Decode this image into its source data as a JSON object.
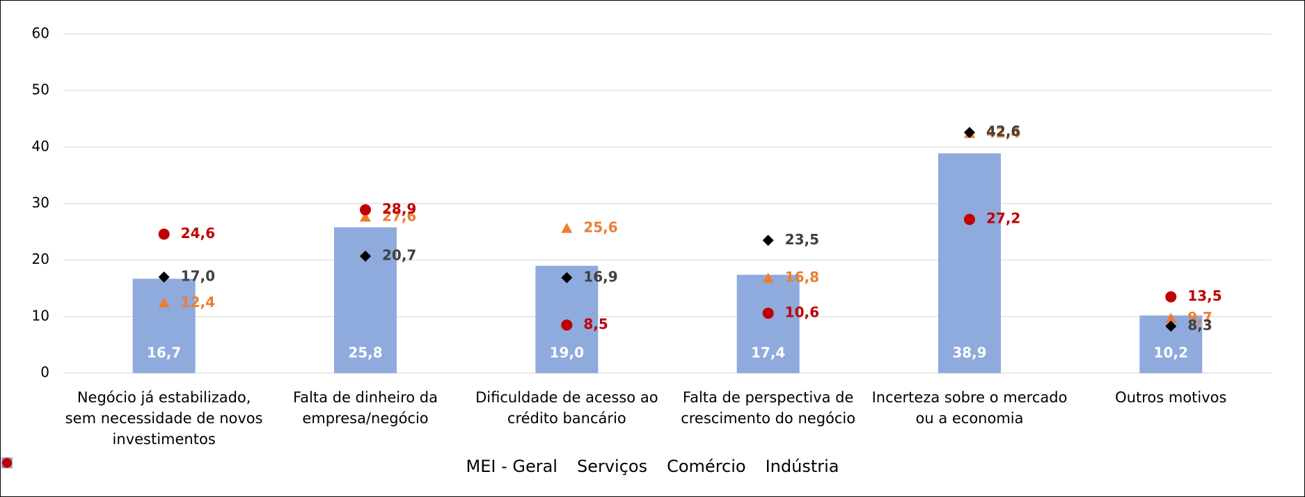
{
  "chart_data": {
    "type": "bar",
    "categories": [
      "Negócio já estabilizado, sem necessidade de novos investimentos",
      "Falta de dinheiro da empresa/negócio",
      "Dificuldade de acesso ao crédito bancário",
      "Falta de perspectiva de crescimento do negócio",
      "Incerteza sobre o mercado ou a economia",
      "Outros motivos"
    ],
    "series": [
      {
        "name": "MEI - Geral",
        "type": "bar",
        "color": "#8faadc",
        "label_color": "#ffffff",
        "values": [
          16.7,
          25.8,
          19.0,
          17.4,
          38.9,
          10.2
        ],
        "value_labels": [
          "16,7",
          "25,8",
          "19,0",
          "17,4",
          "38,9",
          "10,2"
        ]
      },
      {
        "name": "Serviços",
        "type": "scatter",
        "marker": "triangle",
        "color": "#ed7d31",
        "label_color": "#ed7d31",
        "values": [
          12.4,
          27.6,
          25.6,
          16.8,
          42.4,
          9.7
        ],
        "value_labels": [
          "12,4",
          "27,6",
          "25,6",
          "16,8",
          "42,4",
          "9,7"
        ]
      },
      {
        "name": "Comércio",
        "type": "scatter",
        "marker": "diamond",
        "color": "#000000",
        "label_color": "#404040",
        "values": [
          17.0,
          20.7,
          16.9,
          23.5,
          42.6,
          8.3
        ],
        "value_labels": [
          "17,0",
          "20,7",
          "16,9",
          "23,5",
          "42,6",
          "8,3"
        ]
      },
      {
        "name": "Indústria",
        "type": "scatter",
        "marker": "circle",
        "color": "#c00000",
        "label_color": "#c00000",
        "values": [
          24.6,
          28.9,
          8.5,
          10.6,
          27.2,
          13.5
        ],
        "value_labels": [
          "24,6",
          "28,9",
          "8,5",
          "10,6",
          "27,2",
          "13,5"
        ]
      }
    ],
    "ylim": [
      0,
      60
    ],
    "yticks": [
      0,
      10,
      20,
      30,
      40,
      50,
      60
    ],
    "grid": true,
    "legend": "bottom"
  }
}
